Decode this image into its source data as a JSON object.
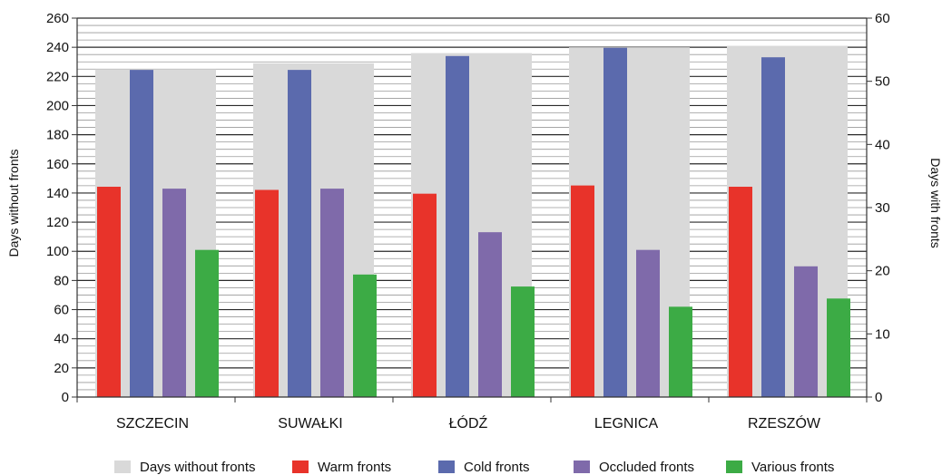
{
  "chart_data": {
    "type": "bar",
    "categories": [
      "SZCZECIN",
      "SUWAŁKI",
      "ŁÓDŹ",
      "LEGNICA",
      "RZESZÓW"
    ],
    "y_left": {
      "label": "Days without fronts",
      "min": 0,
      "max": 260,
      "step": 20,
      "ticks": [
        "0",
        "20",
        "40",
        "60",
        "80",
        "100",
        "120",
        "140",
        "160",
        "180",
        "200",
        "220",
        "240",
        "260"
      ]
    },
    "y_right": {
      "label": "Days with fronts",
      "min": 0,
      "max": 60,
      "step": 10,
      "ticks": [
        "0",
        "10",
        "20",
        "30",
        "40",
        "50",
        "60"
      ]
    },
    "series": [
      {
        "name": "Days without fronts",
        "axis": "left",
        "color": "#d9d9d9",
        "values": [
          225,
          229,
          236,
          240,
          241
        ]
      },
      {
        "name": "Warm fronts",
        "axis": "right",
        "color": "#e8332a",
        "values": [
          33.3,
          32.8,
          32.2,
          33.5,
          33.3
        ]
      },
      {
        "name": "Cold fronts",
        "axis": "right",
        "color": "#5b6aad",
        "values": [
          51.8,
          51.8,
          54.0,
          55.3,
          53.8
        ]
      },
      {
        "name": "Occluded fronts",
        "axis": "right",
        "color": "#7f6aaa",
        "values": [
          33.0,
          33.0,
          26.1,
          23.3,
          20.7
        ]
      },
      {
        "name": "Various fronts",
        "axis": "right",
        "color": "#3cab45",
        "values": [
          23.3,
          19.4,
          17.5,
          14.3,
          15.6
        ]
      }
    ],
    "grid": true,
    "legend_position": "bottom"
  }
}
